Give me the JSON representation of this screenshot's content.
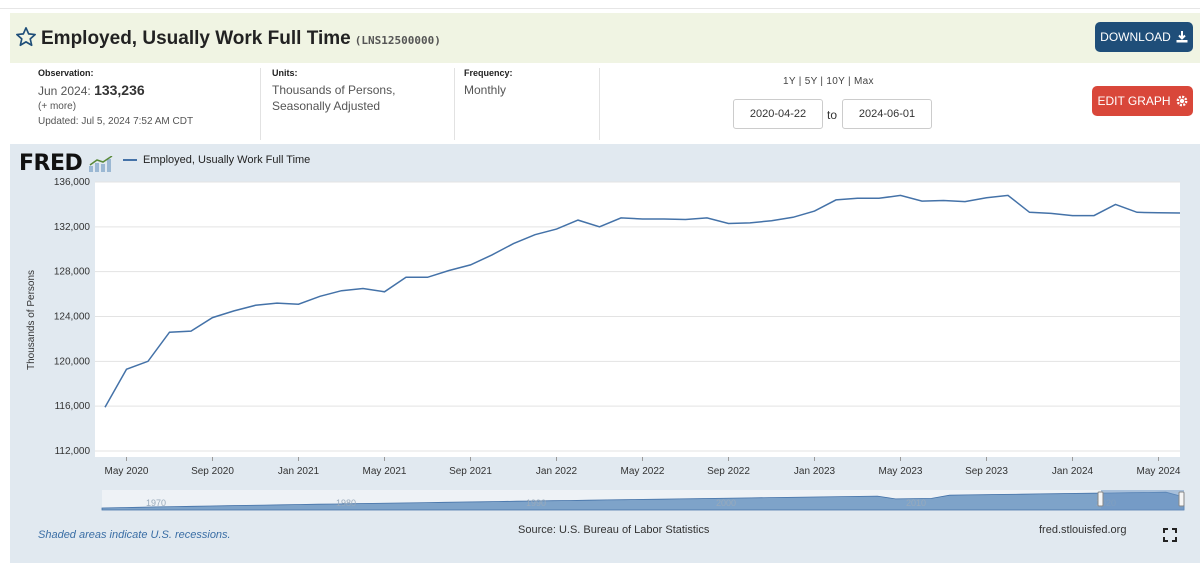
{
  "series": {
    "title": "Employed, Usually Work Full Time",
    "series_id": "(LNS12500000)"
  },
  "buttons": {
    "download": "DOWNLOAD",
    "edit_graph": "EDIT GRAPH"
  },
  "meta": {
    "observation_label": "Observation:",
    "observation_date": "Jun 2024:",
    "observation_value": "133,236",
    "more": "(+ more)",
    "updated": "Updated: Jul 5, 2024 7:52 AM CDT",
    "units_label": "Units:",
    "units_line1": "Thousands of Persons,",
    "units_line2": "Seasonally Adjusted",
    "frequency_label": "Frequency:",
    "frequency_value": "Monthly"
  },
  "range": {
    "presets": "1Y | 5Y | 10Y | Max",
    "start": "2020-04-22",
    "to": "to",
    "end": "2024-06-01"
  },
  "graph": {
    "logo": "FRED",
    "legend": "Employed, Usually Work Full Time",
    "footer_recessions": "Shaded areas indicate U.S. recessions.",
    "footer_source": "Source: U.S. Bureau of Labor Statistics",
    "footer_site": "fred.stlouisfed.org",
    "navigator_years": [
      "1970",
      "1980",
      "1990",
      "2000",
      "2010",
      "2020"
    ]
  },
  "chart_data": {
    "type": "line",
    "ylabel": "Thousands of Persons",
    "ylim": [
      112000,
      136000
    ],
    "yticks": [
      "112,000",
      "116,000",
      "120,000",
      "124,000",
      "128,000",
      "132,000",
      "136,000"
    ],
    "xticks": [
      "May 2020",
      "Sep 2020",
      "Jan 2021",
      "May 2021",
      "Sep 2021",
      "Jan 2022",
      "May 2022",
      "Sep 2022",
      "Jan 2023",
      "May 2023",
      "Sep 2023",
      "Jan 2024",
      "May 2024"
    ],
    "grid": true,
    "line_color": "#4472a8",
    "series": [
      {
        "name": "Employed, Usually Work Full Time",
        "x": [
          "2020-04",
          "2020-05",
          "2020-06",
          "2020-07",
          "2020-08",
          "2020-09",
          "2020-10",
          "2020-11",
          "2020-12",
          "2021-01",
          "2021-02",
          "2021-03",
          "2021-04",
          "2021-05",
          "2021-06",
          "2021-07",
          "2021-08",
          "2021-09",
          "2021-10",
          "2021-11",
          "2021-12",
          "2022-01",
          "2022-02",
          "2022-03",
          "2022-04",
          "2022-05",
          "2022-06",
          "2022-07",
          "2022-08",
          "2022-09",
          "2022-10",
          "2022-11",
          "2022-12",
          "2023-01",
          "2023-02",
          "2023-03",
          "2023-04",
          "2023-05",
          "2023-06",
          "2023-07",
          "2023-08",
          "2023-09",
          "2023-10",
          "2023-11",
          "2023-12",
          "2024-01",
          "2024-02",
          "2024-03",
          "2024-04",
          "2024-05",
          "2024-06"
        ],
        "values": [
          115900,
          119300,
          120000,
          122600,
          122700,
          123900,
          124500,
          125000,
          125200,
          125100,
          125800,
          126300,
          126500,
          126200,
          127500,
          127500,
          128100,
          128600,
          129500,
          130500,
          131300,
          131800,
          132600,
          132000,
          132800,
          132700,
          132700,
          132650,
          132800,
          132300,
          132350,
          132550,
          132850,
          133400,
          134400,
          134550,
          134550,
          134800,
          134300,
          134350,
          134250,
          134600,
          134800,
          133300,
          133200,
          133000,
          133000,
          134000,
          133300,
          133250,
          133236
        ]
      }
    ]
  }
}
